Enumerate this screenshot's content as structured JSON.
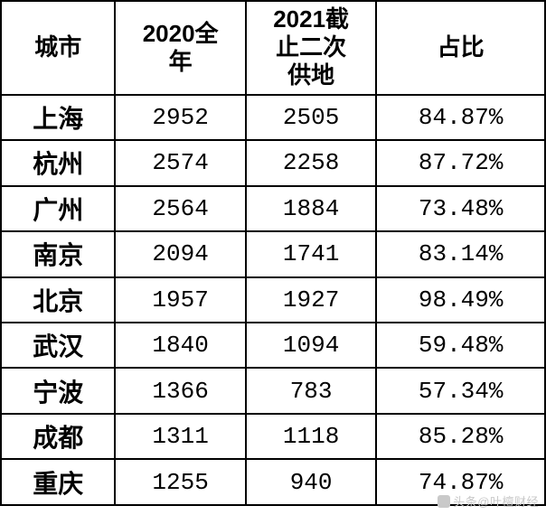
{
  "table": {
    "type": "table",
    "columns": [
      {
        "key": "city",
        "label": "城市",
        "width_pct": 21,
        "header_fontsize": 26,
        "cell_fontsize": 28,
        "bold_cells": true
      },
      {
        "key": "y2020",
        "label": "2020全\n年",
        "width_pct": 24,
        "header_fontsize": 26,
        "cell_fontsize": 26,
        "bold_cells": false
      },
      {
        "key": "y2021",
        "label": "2021截\n止二次\n供地",
        "width_pct": 24,
        "header_fontsize": 26,
        "cell_fontsize": 26,
        "bold_cells": false
      },
      {
        "key": "pct",
        "label": "占比",
        "width_pct": 31,
        "header_fontsize": 26,
        "cell_fontsize": 26,
        "bold_cells": false
      }
    ],
    "rows": [
      {
        "city": "上海",
        "y2020": "2952",
        "y2021": "2505",
        "pct": "84.87%"
      },
      {
        "city": "杭州",
        "y2020": "2574",
        "y2021": "2258",
        "pct": "87.72%"
      },
      {
        "city": "广州",
        "y2020": "2564",
        "y2021": "1884",
        "pct": "73.48%"
      },
      {
        "city": "南京",
        "y2020": "2094",
        "y2021": "1741",
        "pct": "83.14%"
      },
      {
        "city": "北京",
        "y2020": "1957",
        "y2021": "1927",
        "pct": "98.49%"
      },
      {
        "city": "武汉",
        "y2020": "1840",
        "y2021": "1094",
        "pct": "59.48%"
      },
      {
        "city": "宁波",
        "y2020": "1366",
        "y2021": "783",
        "pct": "57.34%"
      },
      {
        "city": "成都",
        "y2020": "1311",
        "y2021": "1118",
        "pct": "85.28%"
      },
      {
        "city": "重庆",
        "y2020": "1255",
        "y2021": "940",
        "pct": "74.87%"
      }
    ],
    "border_color": "#000000",
    "border_width": 2,
    "background_color": "#ffffff",
    "text_color": "#000000"
  },
  "watermark": {
    "text": "头条@叶檀财经",
    "color": "#c9c9c9",
    "fontsize": 13
  }
}
